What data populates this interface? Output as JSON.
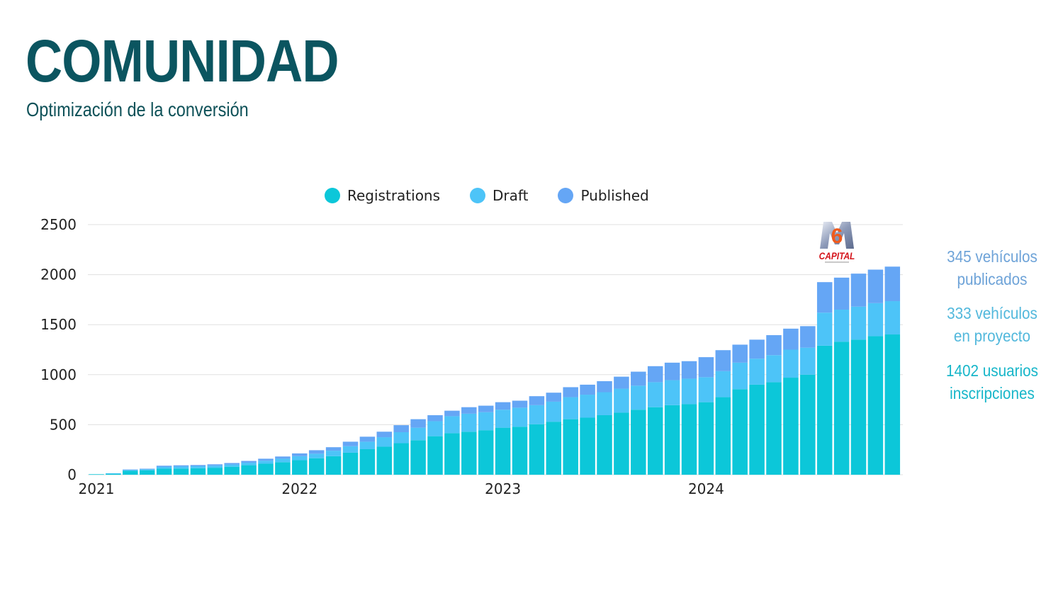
{
  "header": {
    "title": "COMUNIDAD",
    "subtitle": "Optimización de la conversión"
  },
  "side_stats": [
    {
      "line1": "345 vehículos",
      "line2": "publicados",
      "color": "#6ea3d8"
    },
    {
      "line1": "333 vehículos",
      "line2": "en proyecto",
      "color": "#52b8dc"
    },
    {
      "line1": "1402 usuarios",
      "line2": "inscripciones",
      "color": "#17b6c9"
    }
  ],
  "logo": {
    "label": "CAPITAL",
    "number": "6",
    "name": "m6-capital-logo"
  },
  "chart_data": {
    "type": "bar",
    "stacked": true,
    "title": "",
    "xlabel": "",
    "ylabel": "",
    "ylim": [
      0,
      2500
    ],
    "yticks": [
      0,
      500,
      1000,
      1500,
      2000,
      2500
    ],
    "xtick_labels": [
      "2021",
      "2022",
      "2023",
      "2024"
    ],
    "xtick_positions": [
      0,
      12,
      24,
      36
    ],
    "grid": true,
    "legend_position": "top-center",
    "categories": [
      "2021-01",
      "2021-02",
      "2021-03",
      "2021-04",
      "2021-05",
      "2021-06",
      "2021-07",
      "2021-08",
      "2021-09",
      "2021-10",
      "2021-11",
      "2021-12",
      "2022-01",
      "2022-02",
      "2022-03",
      "2022-04",
      "2022-05",
      "2022-06",
      "2022-07",
      "2022-08",
      "2022-09",
      "2022-10",
      "2022-11",
      "2022-12",
      "2023-01",
      "2023-02",
      "2023-03",
      "2023-04",
      "2023-05",
      "2023-06",
      "2023-07",
      "2023-08",
      "2023-09",
      "2023-10",
      "2023-11",
      "2023-12",
      "2024-01",
      "2024-02",
      "2024-03",
      "2024-04",
      "2024-05",
      "2024-06",
      "2024-07",
      "2024-08",
      "2024-09",
      "2024-10",
      "2024-11",
      "2024-12"
    ],
    "series": [
      {
        "name": "Registrations",
        "color": "#0cc7d9",
        "values": [
          5,
          12,
          40,
          45,
          60,
          62,
          65,
          70,
          80,
          95,
          110,
          125,
          145,
          165,
          185,
          220,
          255,
          280,
          315,
          345,
          385,
          415,
          430,
          445,
          470,
          480,
          505,
          530,
          555,
          570,
          595,
          620,
          650,
          675,
          695,
          705,
          725,
          775,
          855,
          900,
          925,
          970,
          1000,
          1290,
          1330,
          1350,
          1385,
          1402
        ]
      },
      {
        "name": "Draft",
        "color": "#4dc4f8",
        "values": [
          0,
          2,
          8,
          10,
          18,
          20,
          20,
          20,
          22,
          25,
          30,
          35,
          40,
          45,
          55,
          65,
          75,
          95,
          110,
          125,
          150,
          170,
          180,
          180,
          180,
          190,
          190,
          200,
          220,
          230,
          230,
          240,
          240,
          250,
          250,
          255,
          250,
          260,
          265,
          260,
          270,
          280,
          270,
          330,
          320,
          330,
          330,
          333
        ]
      },
      {
        "name": "Published",
        "color": "#65a6f5",
        "values": [
          0,
          0,
          4,
          5,
          12,
          12,
          12,
          14,
          15,
          18,
          20,
          22,
          28,
          35,
          35,
          45,
          50,
          55,
          70,
          85,
          60,
          55,
          65,
          65,
          75,
          70,
          90,
          90,
          100,
          100,
          110,
          120,
          140,
          160,
          175,
          175,
          200,
          210,
          180,
          190,
          200,
          210,
          215,
          305,
          320,
          330,
          335,
          345
        ]
      }
    ]
  }
}
